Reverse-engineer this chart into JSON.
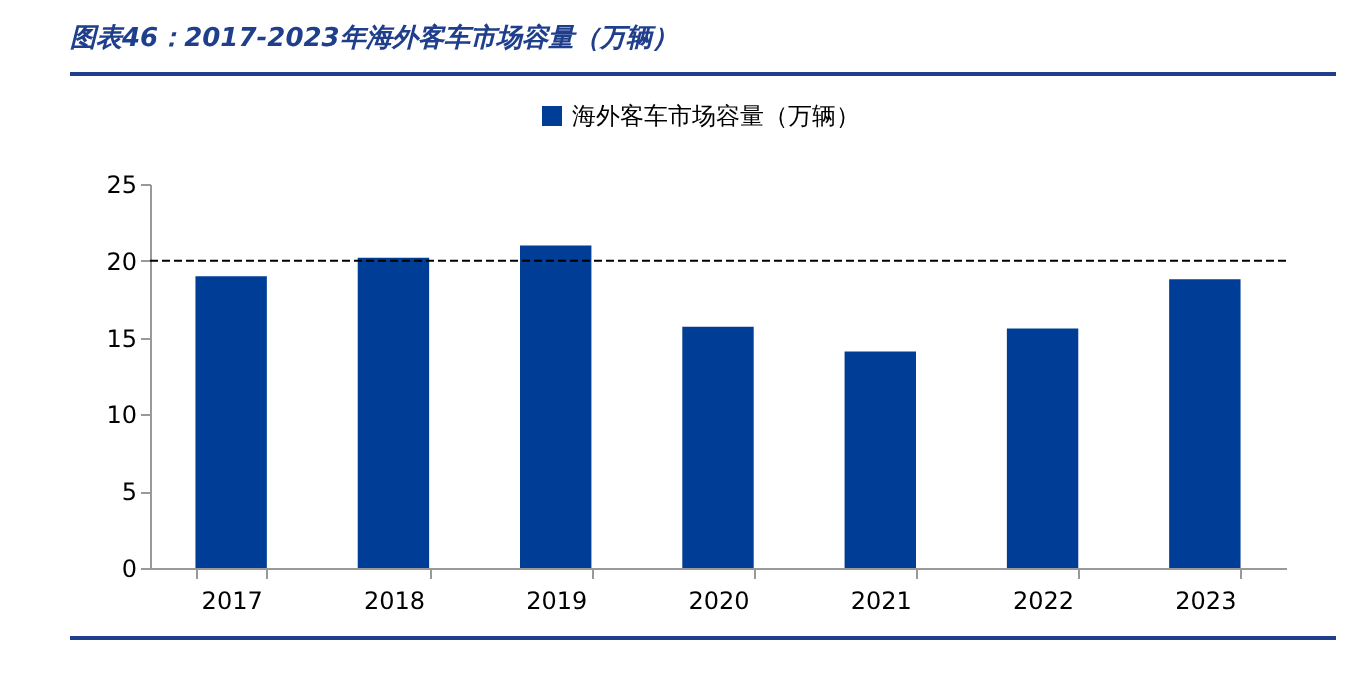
{
  "chart_data": {
    "type": "bar",
    "title": "图表46：2017-2023年海外客车市场容量（万辆）",
    "categories": [
      "2017",
      "2018",
      "2019",
      "2020",
      "2021",
      "2022",
      "2023"
    ],
    "series": [
      {
        "name": "海外客车市场容量（万辆）",
        "color": "#003d96",
        "values": [
          19.0,
          20.2,
          21.0,
          15.7,
          14.1,
          15.6,
          18.8
        ]
      }
    ],
    "ylim": [
      0,
      25
    ],
    "yticks": [
      0,
      5,
      10,
      15,
      20,
      25
    ],
    "grid": false,
    "legend": "top",
    "ref_lines": [
      {
        "axis": "y",
        "value": 20,
        "line_style": "dashed",
        "color": "#000000"
      }
    ]
  }
}
